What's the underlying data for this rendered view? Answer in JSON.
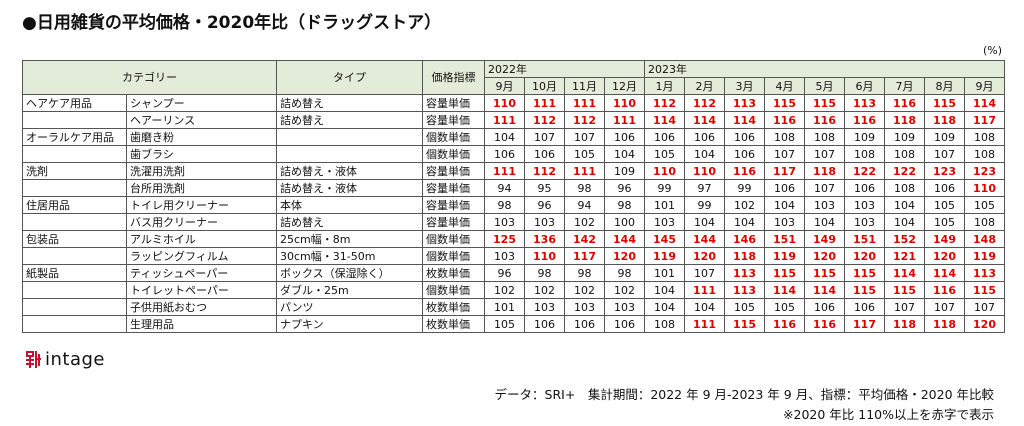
{
  "title": "●日用雑貨の平均価格・2020年比（ドラッグストア）",
  "unit": "(%)",
  "table": {
    "headers": {
      "category": "カテゴリー",
      "type": "タイプ",
      "index": "価格指標"
    },
    "years": [
      "2022年",
      "2023年"
    ],
    "months": [
      "9月",
      "10月",
      "11月",
      "12月",
      "1月",
      "2月",
      "3月",
      "4月",
      "5月",
      "6月",
      "7月",
      "8月",
      "9月"
    ],
    "highlight_threshold": 110,
    "rows": [
      {
        "cat1": "ヘアケア用品",
        "cat2": "シャンプー",
        "type": "詰め替え",
        "index": "容量単価",
        "values": [
          110,
          111,
          111,
          110,
          112,
          112,
          113,
          115,
          115,
          113,
          116,
          115,
          114
        ]
      },
      {
        "cat1": "",
        "cat2": "ヘアーリンス",
        "type": "詰め替え",
        "index": "容量単価",
        "values": [
          111,
          112,
          112,
          111,
          114,
          114,
          114,
          116,
          116,
          116,
          118,
          118,
          117
        ]
      },
      {
        "cat1": "オーラルケア用品",
        "cat2": "歯磨き粉",
        "type": "",
        "index": "個数単価",
        "values": [
          104,
          107,
          107,
          106,
          106,
          106,
          106,
          108,
          108,
          109,
          109,
          109,
          108
        ]
      },
      {
        "cat1": "",
        "cat2": "歯ブラシ",
        "type": "",
        "index": "個数単価",
        "values": [
          106,
          106,
          105,
          104,
          105,
          104,
          106,
          107,
          107,
          108,
          108,
          107,
          108
        ]
      },
      {
        "cat1": "洗剤",
        "cat2": "洗濯用洗剤",
        "type": "詰め替え・液体",
        "index": "容量単価",
        "values": [
          111,
          112,
          111,
          109,
          110,
          110,
          116,
          117,
          118,
          122,
          122,
          123,
          123
        ]
      },
      {
        "cat1": "",
        "cat2": "台所用洗剤",
        "type": "詰め替え・液体",
        "index": "容量単価",
        "values": [
          94,
          95,
          98,
          96,
          99,
          97,
          99,
          106,
          107,
          106,
          108,
          106,
          110
        ]
      },
      {
        "cat1": "住居用品",
        "cat2": "トイレ用クリーナー",
        "type": "本体",
        "index": "容量単価",
        "values": [
          98,
          96,
          94,
          98,
          101,
          99,
          102,
          104,
          103,
          103,
          104,
          105,
          105
        ]
      },
      {
        "cat1": "",
        "cat2": "バス用クリーナー",
        "type": "詰め替え",
        "index": "容量単価",
        "values": [
          103,
          103,
          102,
          100,
          103,
          104,
          104,
          103,
          104,
          103,
          104,
          105,
          108
        ]
      },
      {
        "cat1": "包装品",
        "cat2": "アルミホイル",
        "type": "25cm幅・8m",
        "index": "個数単価",
        "values": [
          125,
          136,
          142,
          144,
          145,
          144,
          146,
          151,
          149,
          151,
          152,
          149,
          148
        ]
      },
      {
        "cat1": "",
        "cat2": "ラッピングフィルム",
        "type": "30cm幅・31-50m",
        "index": "個数単価",
        "values": [
          103,
          110,
          117,
          120,
          119,
          120,
          118,
          119,
          120,
          120,
          121,
          120,
          119
        ]
      },
      {
        "cat1": "紙製品",
        "cat2": "ティッシュペーパー",
        "type": "ボックス（保湿除く）",
        "index": "枚数単価",
        "values": [
          96,
          98,
          98,
          98,
          101,
          107,
          113,
          115,
          115,
          115,
          114,
          114,
          113
        ]
      },
      {
        "cat1": "",
        "cat2": "トイレットペーパー",
        "type": "ダブル・25m",
        "index": "個数単価",
        "values": [
          102,
          102,
          102,
          102,
          104,
          111,
          113,
          114,
          114,
          115,
          115,
          116,
          115
        ]
      },
      {
        "cat1": "",
        "cat2": "子供用紙おむつ",
        "type": "パンツ",
        "index": "枚数単価",
        "values": [
          101,
          103,
          103,
          103,
          104,
          104,
          105,
          105,
          106,
          106,
          107,
          107,
          107
        ]
      },
      {
        "cat1": "",
        "cat2": "生理用品",
        "type": "ナプキン",
        "index": "枚数単価",
        "values": [
          105,
          106,
          106,
          106,
          108,
          111,
          115,
          116,
          116,
          117,
          118,
          118,
          120
        ]
      }
    ]
  },
  "footer": {
    "logo_text": "intage",
    "source": "データ：SRI+　集計期間：2022 年 9 月-2023 年 9 月、指標：平均価格・2020 年比較",
    "note": "※2020 年比 110%以上を赤字で表示"
  }
}
